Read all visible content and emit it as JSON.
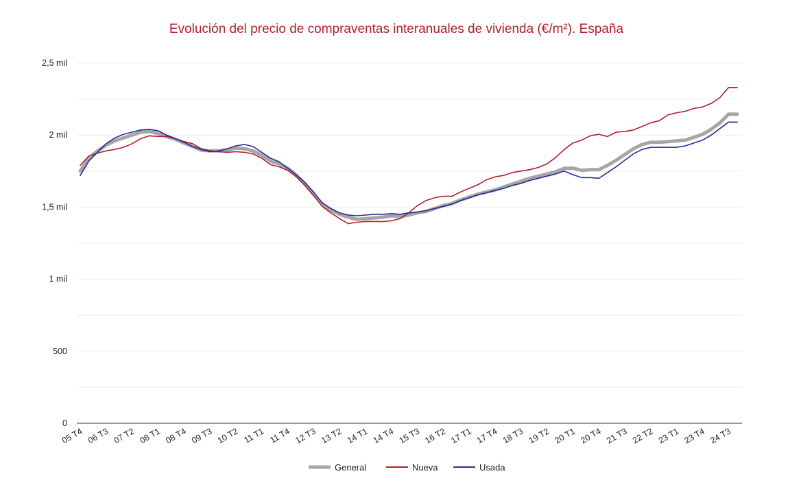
{
  "chart_data": {
    "type": "line",
    "title": "Evolución del precio de compraventas interanuales de vivienda (€/m²). España",
    "xlabel": "",
    "ylabel": "",
    "ylim": [
      0,
      2500
    ],
    "yticks": [
      0,
      500,
      1000,
      1500,
      2000,
      2500
    ],
    "ytick_labels": [
      "0",
      "500",
      "1 mil",
      "1,5 mil",
      "2 mil",
      "2,5 mil"
    ],
    "grid": true,
    "legend_position": "bottom",
    "x": [
      "05 T4",
      "06 T1",
      "06 T2",
      "06 T3",
      "06 T4",
      "07 T1",
      "07 T2",
      "07 T3",
      "07 T4",
      "08 T1",
      "08 T2",
      "08 T3",
      "08 T4",
      "09 T1",
      "09 T2",
      "09 T3",
      "09 T4",
      "10 T1",
      "10 T2",
      "10 T3",
      "10 T4",
      "11 T1",
      "11 T2",
      "11 T3",
      "11 T4",
      "12 T1",
      "12 T2",
      "12 T3",
      "12 T4",
      "13 T1",
      "13 T2",
      "13 T3",
      "13 T4",
      "14 T1",
      "14 T2",
      "14 T3",
      "14 T4",
      "15 T1",
      "15 T2",
      "15 T3",
      "15 T4",
      "16 T1",
      "16 T2",
      "16 T3",
      "16 T4",
      "17 T1",
      "17 T2",
      "17 T3",
      "17 T4",
      "18 T1",
      "18 T2",
      "18 T3",
      "18 T4",
      "19 T1",
      "19 T2",
      "19 T3",
      "19 T4",
      "20 T1",
      "20 T2",
      "20 T3",
      "20 T4",
      "21 T1",
      "21 T2",
      "21 T3",
      "21 T4",
      "22 T1",
      "22 T2",
      "22 T3",
      "22 T4",
      "23 T1",
      "23 T2",
      "23 T3",
      "23 T4",
      "24 T1",
      "24 T2",
      "24 T3",
      "24 T4"
    ],
    "x_tick_labels": [
      "05 T4",
      "06 T3",
      "07 T2",
      "08 T1",
      "08 T4",
      "09 T3",
      "10 T2",
      "11 T1",
      "11 T4",
      "12 T3",
      "13 T2",
      "14 T1",
      "14 T4",
      "15 T3",
      "16 T2",
      "17 T1",
      "17 T4",
      "18 T3",
      "19 T2",
      "20 T1",
      "20 T4",
      "21 T3",
      "22 T2",
      "23 T1",
      "23 T4",
      "24 T3"
    ],
    "series": [
      {
        "name": "General",
        "color": "#a6a6a6",
        "values": [
          1750,
          1840,
          1890,
          1930,
          1960,
          1980,
          2000,
          2020,
          2025,
          2010,
          1990,
          1970,
          1945,
          1920,
          1895,
          1890,
          1890,
          1895,
          1910,
          1905,
          1890,
          1860,
          1820,
          1800,
          1770,
          1720,
          1660,
          1590,
          1520,
          1480,
          1450,
          1430,
          1415,
          1420,
          1425,
          1430,
          1440,
          1435,
          1445,
          1460,
          1470,
          1490,
          1510,
          1525,
          1550,
          1570,
          1590,
          1605,
          1620,
          1640,
          1660,
          1680,
          1700,
          1715,
          1730,
          1745,
          1770,
          1770,
          1755,
          1760,
          1760,
          1790,
          1825,
          1865,
          1905,
          1935,
          1950,
          1950,
          1955,
          1960,
          1965,
          1985,
          2005,
          2040,
          2085,
          2145,
          2145
        ]
      },
      {
        "name": "Nueva",
        "color": "#b0202a",
        "values": [
          1790,
          1855,
          1875,
          1890,
          1900,
          1915,
          1940,
          1975,
          1995,
          1990,
          1990,
          1975,
          1955,
          1940,
          1905,
          1890,
          1885,
          1880,
          1885,
          1880,
          1870,
          1840,
          1795,
          1780,
          1755,
          1710,
          1650,
          1580,
          1505,
          1460,
          1420,
          1385,
          1395,
          1400,
          1400,
          1400,
          1405,
          1420,
          1460,
          1510,
          1545,
          1565,
          1575,
          1575,
          1605,
          1630,
          1655,
          1690,
          1710,
          1720,
          1740,
          1750,
          1760,
          1775,
          1800,
          1845,
          1900,
          1945,
          1965,
          1995,
          2005,
          1990,
          2020,
          2025,
          2035,
          2060,
          2085,
          2100,
          2140,
          2155,
          2165,
          2185,
          2195,
          2220,
          2260,
          2330,
          2330
        ]
      },
      {
        "name": "Usada",
        "color": "#1f2d9c",
        "values": [
          1720,
          1820,
          1880,
          1940,
          1980,
          2005,
          2020,
          2035,
          2040,
          2030,
          2000,
          1975,
          1950,
          1920,
          1900,
          1885,
          1890,
          1905,
          1925,
          1935,
          1920,
          1880,
          1840,
          1815,
          1770,
          1725,
          1670,
          1605,
          1530,
          1490,
          1460,
          1445,
          1440,
          1445,
          1450,
          1450,
          1455,
          1450,
          1460,
          1465,
          1475,
          1490,
          1505,
          1520,
          1545,
          1565,
          1585,
          1600,
          1615,
          1630,
          1650,
          1665,
          1685,
          1700,
          1715,
          1730,
          1750,
          1725,
          1705,
          1705,
          1700,
          1740,
          1780,
          1825,
          1870,
          1900,
          1915,
          1915,
          1915,
          1915,
          1925,
          1945,
          1965,
          2000,
          2045,
          2090,
          2090
        ]
      }
    ]
  }
}
